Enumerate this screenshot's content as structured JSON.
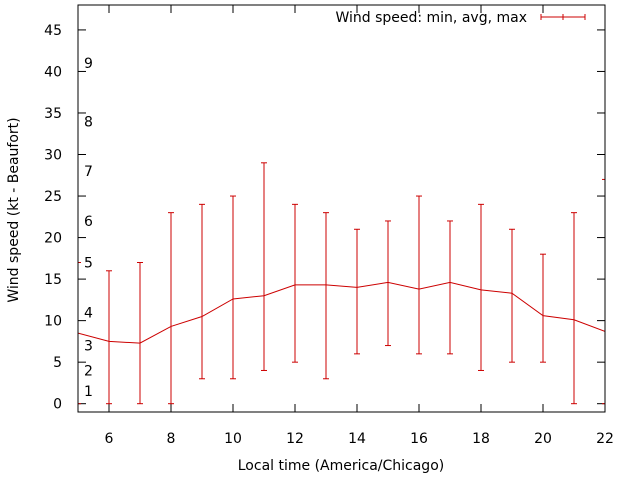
{
  "chart_data": {
    "type": "line",
    "title": "",
    "xlabel": "Local time (America/Chicago)",
    "ylabel": "Wind speed (kt - Beaufort)",
    "xlim": [
      5,
      22
    ],
    "ylim": [
      -1,
      48
    ],
    "x_ticks": [
      6,
      8,
      10,
      12,
      14,
      16,
      18,
      20,
      22
    ],
    "y_ticks": [
      0,
      5,
      10,
      15,
      20,
      25,
      30,
      35,
      40,
      45
    ],
    "beaufort_labels": [
      {
        "label": "1",
        "value": 1.5
      },
      {
        "label": "2",
        "value": 4.0
      },
      {
        "label": "3",
        "value": 7.0
      },
      {
        "label": "4",
        "value": 11.0
      },
      {
        "label": "5",
        "value": 17.0
      },
      {
        "label": "6",
        "value": 22.0
      },
      {
        "label": "7",
        "value": 28.0
      },
      {
        "label": "8",
        "value": 34.0
      },
      {
        "label": "9",
        "value": 41.0
      }
    ],
    "legend": {
      "label": "Wind speed: min, avg, max",
      "position": "top-right"
    },
    "grid": false,
    "series": [
      {
        "name": "Wind speed: min, avg, max",
        "color": "#cc0000",
        "points": [
          {
            "x": 5,
            "avg": 8.5,
            "min": 0,
            "max": 17
          },
          {
            "x": 6,
            "avg": 7.5,
            "min": 0,
            "max": 16
          },
          {
            "x": 7,
            "avg": 7.3,
            "min": 0,
            "max": 17
          },
          {
            "x": 8,
            "avg": 9.3,
            "min": 0,
            "max": 23
          },
          {
            "x": 9,
            "avg": 10.5,
            "min": 3,
            "max": 24
          },
          {
            "x": 10,
            "avg": 12.6,
            "min": 3,
            "max": 25
          },
          {
            "x": 11,
            "avg": 13.0,
            "min": 4,
            "max": 29
          },
          {
            "x": 12,
            "avg": 14.3,
            "min": 5,
            "max": 24
          },
          {
            "x": 13,
            "avg": 14.3,
            "min": 3,
            "max": 23
          },
          {
            "x": 14,
            "avg": 14.0,
            "min": 6,
            "max": 21
          },
          {
            "x": 15,
            "avg": 14.6,
            "min": 7,
            "max": 22
          },
          {
            "x": 16,
            "avg": 13.8,
            "min": 6,
            "max": 25
          },
          {
            "x": 17,
            "avg": 14.6,
            "min": 6,
            "max": 22
          },
          {
            "x": 18,
            "avg": 13.7,
            "min": 4,
            "max": 24
          },
          {
            "x": 19,
            "avg": 13.3,
            "min": 5,
            "max": 21
          },
          {
            "x": 20,
            "avg": 10.6,
            "min": 5,
            "max": 18
          },
          {
            "x": 21,
            "avg": 10.1,
            "min": 0,
            "max": 23
          },
          {
            "x": 22,
            "avg": 8.7,
            "min": 0,
            "max": 27
          }
        ]
      }
    ]
  }
}
